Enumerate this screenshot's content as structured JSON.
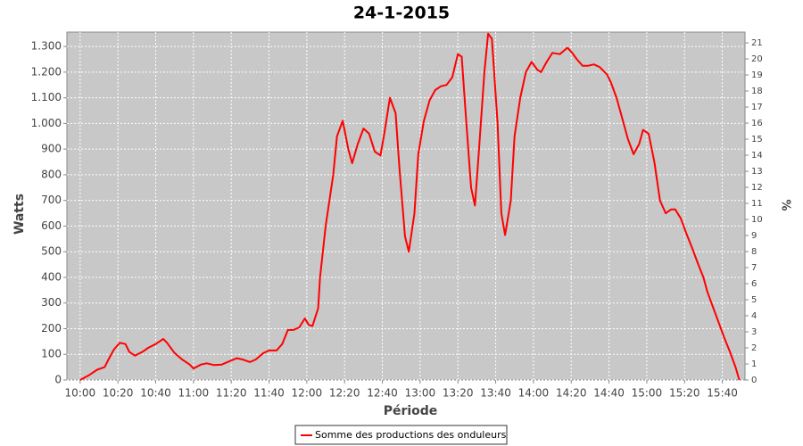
{
  "chart_data": {
    "type": "line",
    "title": "24-1-2015",
    "x_label": "Période",
    "y_label": "Watts",
    "y2_label": "%",
    "x": [
      600,
      605,
      609,
      613,
      615,
      618,
      621,
      624,
      626,
      629,
      633,
      636,
      640,
      644,
      646,
      650,
      654,
      658,
      660,
      664,
      667,
      671,
      675,
      678,
      683,
      686,
      690,
      693,
      697,
      700,
      704,
      707,
      710,
      713,
      716,
      719,
      721,
      723,
      726,
      727,
      730,
      731,
      734,
      736,
      739,
      742,
      744,
      747,
      750,
      753,
      756,
      759,
      761,
      764,
      767,
      769,
      772,
      774,
      777,
      779,
      782,
      785,
      788,
      791,
      794,
      797,
      800,
      802,
      804,
      807,
      809,
      811,
      814,
      816,
      818,
      821,
      823,
      825,
      828,
      830,
      833,
      836,
      839,
      842,
      844,
      847,
      850,
      854,
      858,
      860,
      863,
      866,
      869,
      872,
      875,
      879,
      881,
      884,
      887,
      890,
      893,
      896,
      898,
      901,
      904,
      907,
      910,
      913,
      915,
      918,
      921,
      924,
      927,
      930,
      932,
      935,
      938,
      941,
      944,
      947,
      949
    ],
    "series": [
      {
        "name": "Somme des productions des onduleurs",
        "color": "#ff0000",
        "values": [
          0,
          20,
          40,
          50,
          80,
          120,
          145,
          140,
          110,
          95,
          110,
          125,
          140,
          160,
          145,
          105,
          80,
          60,
          45,
          60,
          65,
          58,
          60,
          70,
          85,
          80,
          70,
          80,
          105,
          115,
          115,
          140,
          195,
          195,
          205,
          240,
          215,
          210,
          280,
          400,
          600,
          650,
          800,
          950,
          1010,
          900,
          845,
          920,
          980,
          960,
          890,
          875,
          960,
          1100,
          1040,
          830,
          560,
          500,
          650,
          880,
          1010,
          1090,
          1130,
          1145,
          1150,
          1180,
          1270,
          1260,
          1050,
          750,
          680,
          880,
          1200,
          1350,
          1330,
          1000,
          650,
          565,
          700,
          950,
          1100,
          1200,
          1240,
          1210,
          1200,
          1240,
          1275,
          1270,
          1295,
          1280,
          1250,
          1225,
          1225,
          1230,
          1220,
          1190,
          1160,
          1100,
          1020,
          940,
          880,
          920,
          975,
          960,
          850,
          700,
          650,
          665,
          665,
          630,
          570,
          515,
          455,
          400,
          345,
          285,
          225,
          165,
          110,
          50,
          0
        ]
      }
    ],
    "xlim": [
      593,
      952
    ],
    "xticks": [
      {
        "value": 600,
        "label": "10:00"
      },
      {
        "value": 620,
        "label": "10:20"
      },
      {
        "value": 640,
        "label": "10:40"
      },
      {
        "value": 660,
        "label": "11:00"
      },
      {
        "value": 680,
        "label": "11:20"
      },
      {
        "value": 700,
        "label": "11:40"
      },
      {
        "value": 720,
        "label": "12:00"
      },
      {
        "value": 740,
        "label": "12:20"
      },
      {
        "value": 760,
        "label": "12:40"
      },
      {
        "value": 780,
        "label": "13:00"
      },
      {
        "value": 800,
        "label": "13:20"
      },
      {
        "value": 820,
        "label": "13:40"
      },
      {
        "value": 840,
        "label": "14:00"
      },
      {
        "value": 860,
        "label": "14:20"
      },
      {
        "value": 880,
        "label": "14:40"
      },
      {
        "value": 900,
        "label": "15:00"
      },
      {
        "value": 920,
        "label": "15:20"
      },
      {
        "value": 940,
        "label": "15:40"
      }
    ],
    "ylim": [
      0,
      1356
    ],
    "yticks": [
      0,
      100,
      200,
      300,
      400,
      500,
      600,
      700,
      800,
      900,
      {
        "value": 1000,
        "label": "1.000"
      },
      {
        "value": 1100,
        "label": "1.100"
      },
      {
        "value": 1200,
        "label": "1.200"
      },
      {
        "value": 1300,
        "label": "1.300"
      }
    ],
    "y2lim": [
      0,
      21.67
    ],
    "y2ticks": [
      0,
      1,
      2,
      3,
      4,
      5,
      6,
      7,
      8,
      9,
      10,
      11,
      12,
      13,
      14,
      15,
      16,
      17,
      18,
      19,
      20,
      21
    ],
    "grid": true
  }
}
